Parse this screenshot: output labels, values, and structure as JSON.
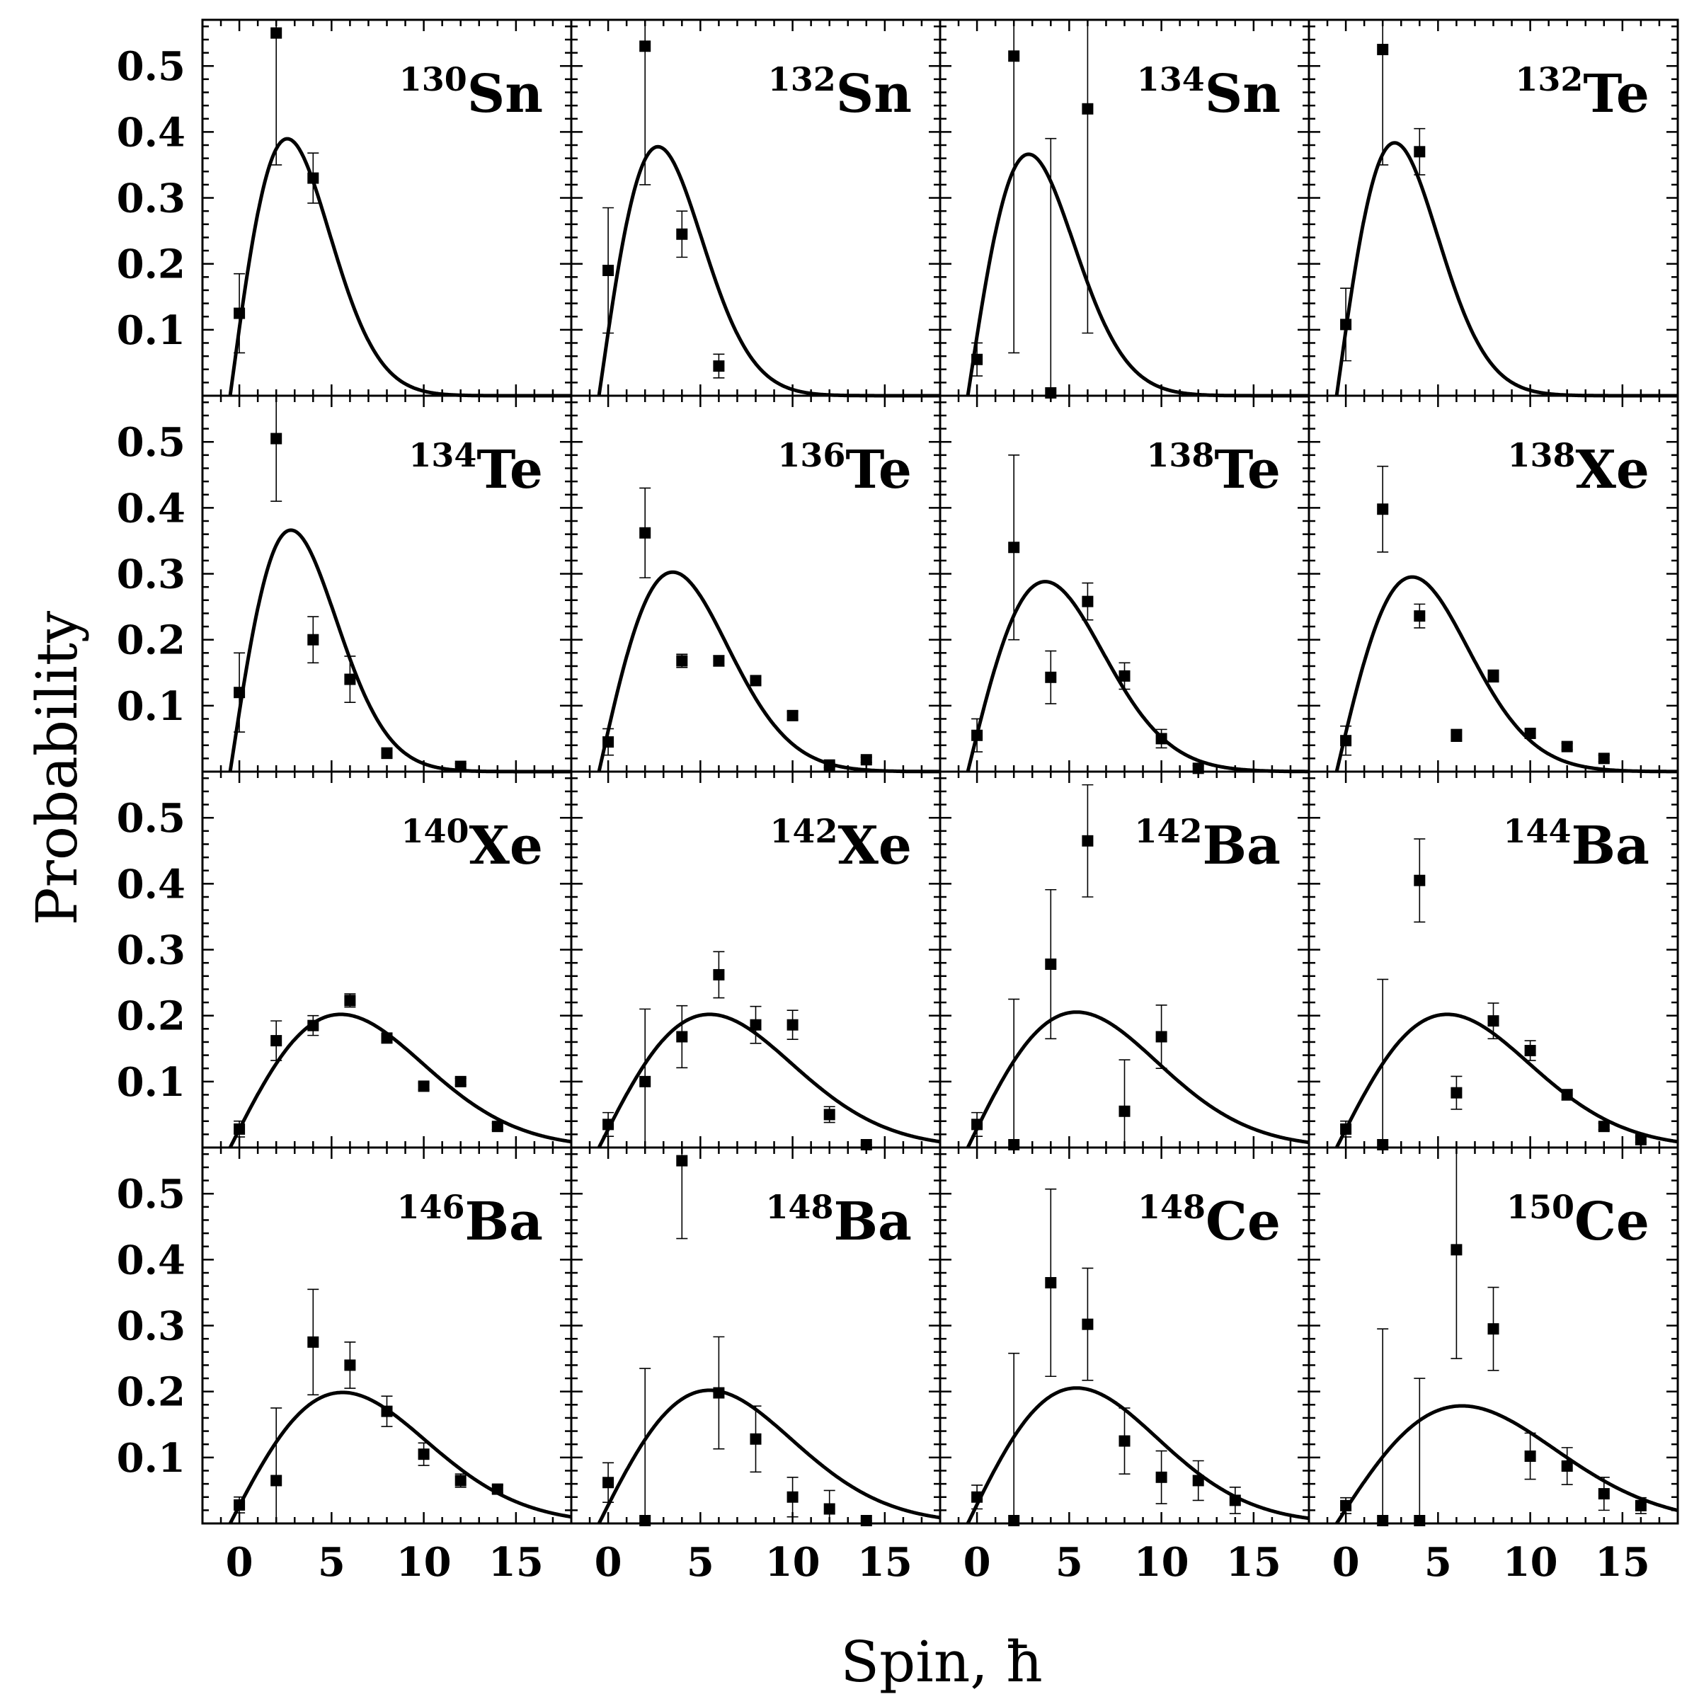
{
  "chart_data": {
    "type": "scatter",
    "layout": "4x4 grid of panels with shared axes",
    "xlabel": "Spin, ħ",
    "ylabel": "Probability",
    "xlim": [
      -2,
      18
    ],
    "ylim": [
      0,
      0.57
    ],
    "xticks": [
      0,
      5,
      10,
      15
    ],
    "xtick_labels": [
      "0",
      "5",
      "10",
      "15"
    ],
    "yticks": [
      0.1,
      0.2,
      0.3,
      0.4,
      0.5
    ],
    "ytick_labels": [
      "0.1",
      "0.2",
      "0.3",
      "0.4",
      "0.5"
    ],
    "series_names": [
      "Data (points with error bars)",
      "Model (solid curve)"
    ],
    "panels": [
      {
        "mass": "130",
        "element": "Sn",
        "curve_sigma": 3.1,
        "points": [
          {
            "x": 0,
            "y": 0.125,
            "err": 0.06
          },
          {
            "x": 2,
            "y": 0.55,
            "err": 0.2
          },
          {
            "x": 4,
            "y": 0.33,
            "err": 0.038
          }
        ]
      },
      {
        "mass": "132",
        "element": "Sn",
        "curve_sigma": 3.2,
        "points": [
          {
            "x": 0,
            "y": 0.19,
            "err": 0.095
          },
          {
            "x": 2,
            "y": 0.53,
            "err": 0.21
          },
          {
            "x": 4,
            "y": 0.245,
            "err": 0.035
          },
          {
            "x": 6,
            "y": 0.045,
            "err": 0.018
          }
        ]
      },
      {
        "mass": "134",
        "element": "Sn",
        "curve_sigma": 3.3,
        "points": [
          {
            "x": 0,
            "y": 0.055,
            "err": 0.025
          },
          {
            "x": 2,
            "y": 0.515,
            "err": 0.45
          },
          {
            "x": 4,
            "y": 0.0,
            "err": 0.39
          },
          {
            "x": 6,
            "y": 0.435,
            "err": 0.34
          }
        ]
      },
      {
        "mass": "132",
        "element": "Te",
        "curve_sigma": 3.15,
        "points": [
          {
            "x": 0,
            "y": 0.108,
            "err": 0.055
          },
          {
            "x": 2,
            "y": 0.525,
            "err": 0.175
          },
          {
            "x": 4,
            "y": 0.37,
            "err": 0.035
          }
        ]
      },
      {
        "mass": "134",
        "element": "Te",
        "curve_sigma": 3.3,
        "points": [
          {
            "x": 0,
            "y": 0.12,
            "err": 0.06
          },
          {
            "x": 2,
            "y": 0.505,
            "err": 0.095
          },
          {
            "x": 4,
            "y": 0.2,
            "err": 0.035
          },
          {
            "x": 6,
            "y": 0.14,
            "err": 0.035
          },
          {
            "x": 8,
            "y": 0.028,
            "err": 0.008
          },
          {
            "x": 12,
            "y": 0.008,
            "err": 0.004
          }
        ]
      },
      {
        "mass": "136",
        "element": "Te",
        "curve_sigma": 4.0,
        "points": [
          {
            "x": 0,
            "y": 0.045,
            "err": 0.02
          },
          {
            "x": 2,
            "y": 0.362,
            "err": 0.068
          },
          {
            "x": 4,
            "y": 0.168,
            "err": 0.01
          },
          {
            "x": 6,
            "y": 0.168,
            "err": 0.008
          },
          {
            "x": 8,
            "y": 0.138,
            "err": 0.007
          },
          {
            "x": 10,
            "y": 0.085,
            "err": 0.006
          },
          {
            "x": 12,
            "y": 0.01,
            "err": 0.004
          },
          {
            "x": 14,
            "y": 0.018,
            "err": 0.004
          }
        ]
      },
      {
        "mass": "138",
        "element": "Te",
        "curve_sigma": 4.2,
        "points": [
          {
            "x": 0,
            "y": 0.055,
            "err": 0.025
          },
          {
            "x": 2,
            "y": 0.34,
            "err": 0.14
          },
          {
            "x": 4,
            "y": 0.143,
            "err": 0.04
          },
          {
            "x": 6,
            "y": 0.258,
            "err": 0.028
          },
          {
            "x": 8,
            "y": 0.145,
            "err": 0.02
          },
          {
            "x": 10,
            "y": 0.05,
            "err": 0.014
          },
          {
            "x": 12,
            "y": 0.005,
            "err": 0.004
          }
        ]
      },
      {
        "mass": "138",
        "element": "Xe",
        "curve_sigma": 4.1,
        "points": [
          {
            "x": 0,
            "y": 0.047,
            "err": 0.022
          },
          {
            "x": 2,
            "y": 0.398,
            "err": 0.065
          },
          {
            "x": 4,
            "y": 0.236,
            "err": 0.018
          },
          {
            "x": 6,
            "y": 0.055,
            "err": 0.009
          },
          {
            "x": 8,
            "y": 0.145,
            "err": 0.009
          },
          {
            "x": 10,
            "y": 0.058,
            "err": 0.006
          },
          {
            "x": 12,
            "y": 0.038,
            "err": 0.005
          },
          {
            "x": 14,
            "y": 0.02,
            "err": 0.005
          }
        ]
      },
      {
        "mass": "140",
        "element": "Xe",
        "curve_sigma": 6.0,
        "points": [
          {
            "x": 0,
            "y": 0.028,
            "err": 0.012
          },
          {
            "x": 2,
            "y": 0.162,
            "err": 0.03
          },
          {
            "x": 4,
            "y": 0.185,
            "err": 0.015
          },
          {
            "x": 6,
            "y": 0.223,
            "err": 0.01
          },
          {
            "x": 8,
            "y": 0.166,
            "err": 0.007
          },
          {
            "x": 10,
            "y": 0.093,
            "err": 0.005
          },
          {
            "x": 12,
            "y": 0.1,
            "err": 0.005
          },
          {
            "x": 14,
            "y": 0.032,
            "err": 0.005
          }
        ]
      },
      {
        "mass": "142",
        "element": "Xe",
        "curve_sigma": 6.0,
        "points": [
          {
            "x": 0,
            "y": 0.035,
            "err": 0.018
          },
          {
            "x": 2,
            "y": 0.1,
            "err": 0.11
          },
          {
            "x": 4,
            "y": 0.168,
            "err": 0.047
          },
          {
            "x": 6,
            "y": 0.262,
            "err": 0.035
          },
          {
            "x": 8,
            "y": 0.186,
            "err": 0.028
          },
          {
            "x": 10,
            "y": 0.186,
            "err": 0.022
          },
          {
            "x": 12,
            "y": 0.05,
            "err": 0.012
          },
          {
            "x": 14,
            "y": 0.0,
            "err": 0.004
          }
        ]
      },
      {
        "mass": "142",
        "element": "Ba",
        "curve_sigma": 5.9,
        "points": [
          {
            "x": 0,
            "y": 0.035,
            "err": 0.018
          },
          {
            "x": 2,
            "y": 0.0,
            "err": 0.225
          },
          {
            "x": 4,
            "y": 0.278,
            "err": 0.113
          },
          {
            "x": 6,
            "y": 0.465,
            "err": 0.085
          },
          {
            "x": 8,
            "y": 0.055,
            "err": 0.078
          },
          {
            "x": 10,
            "y": 0.168,
            "err": 0.048
          }
        ]
      },
      {
        "mass": "144",
        "element": "Ba",
        "curve_sigma": 6.0,
        "points": [
          {
            "x": 0,
            "y": 0.028,
            "err": 0.012
          },
          {
            "x": 2,
            "y": 0.0,
            "err": 0.255
          },
          {
            "x": 4,
            "y": 0.405,
            "err": 0.063
          },
          {
            "x": 6,
            "y": 0.083,
            "err": 0.025
          },
          {
            "x": 8,
            "y": 0.192,
            "err": 0.027
          },
          {
            "x": 10,
            "y": 0.147,
            "err": 0.015
          },
          {
            "x": 12,
            "y": 0.08,
            "err": 0.008
          },
          {
            "x": 14,
            "y": 0.032,
            "err": 0.005
          },
          {
            "x": 16,
            "y": 0.012,
            "err": 0.004
          }
        ]
      },
      {
        "mass": "146",
        "element": "Ba",
        "curve_sigma": 6.1,
        "points": [
          {
            "x": 0,
            "y": 0.028,
            "err": 0.012
          },
          {
            "x": 2,
            "y": 0.065,
            "err": 0.11
          },
          {
            "x": 4,
            "y": 0.275,
            "err": 0.08
          },
          {
            "x": 6,
            "y": 0.24,
            "err": 0.035
          },
          {
            "x": 8,
            "y": 0.17,
            "err": 0.023
          },
          {
            "x": 10,
            "y": 0.105,
            "err": 0.017
          },
          {
            "x": 12,
            "y": 0.065,
            "err": 0.01
          },
          {
            "x": 14,
            "y": 0.052,
            "err": 0.006
          }
        ]
      },
      {
        "mass": "148",
        "element": "Ba",
        "curve_sigma": 6.0,
        "points": [
          {
            "x": 0,
            "y": 0.062,
            "err": 0.03
          },
          {
            "x": 2,
            "y": 0.0,
            "err": 0.235
          },
          {
            "x": 4,
            "y": 0.55,
            "err": 0.118
          },
          {
            "x": 6,
            "y": 0.198,
            "err": 0.085
          },
          {
            "x": 8,
            "y": 0.128,
            "err": 0.05
          },
          {
            "x": 10,
            "y": 0.04,
            "err": 0.03
          },
          {
            "x": 12,
            "y": 0.022,
            "err": 0.028
          },
          {
            "x": 14,
            "y": 0.0,
            "err": 0.004
          }
        ]
      },
      {
        "mass": "148",
        "element": "Ce",
        "curve_sigma": 5.9,
        "points": [
          {
            "x": 0,
            "y": 0.04,
            "err": 0.018
          },
          {
            "x": 2,
            "y": 0.0,
            "err": 0.258
          },
          {
            "x": 4,
            "y": 0.365,
            "err": 0.142
          },
          {
            "x": 6,
            "y": 0.302,
            "err": 0.085
          },
          {
            "x": 8,
            "y": 0.125,
            "err": 0.05
          },
          {
            "x": 10,
            "y": 0.07,
            "err": 0.04
          },
          {
            "x": 12,
            "y": 0.065,
            "err": 0.03
          },
          {
            "x": 14,
            "y": 0.035,
            "err": 0.02
          }
        ]
      },
      {
        "mass": "150",
        "element": "Ce",
        "curve_sigma": 6.8,
        "points": [
          {
            "x": 0,
            "y": 0.027,
            "err": 0.012
          },
          {
            "x": 2,
            "y": 0.0,
            "err": 0.295
          },
          {
            "x": 4,
            "y": 0.0,
            "err": 0.22
          },
          {
            "x": 6,
            "y": 0.415,
            "err": 0.165
          },
          {
            "x": 8,
            "y": 0.295,
            "err": 0.063
          },
          {
            "x": 10,
            "y": 0.102,
            "err": 0.035
          },
          {
            "x": 12,
            "y": 0.087,
            "err": 0.028
          },
          {
            "x": 14,
            "y": 0.045,
            "err": 0.025
          },
          {
            "x": 16,
            "y": 0.027,
            "err": 0.012
          }
        ]
      }
    ]
  }
}
